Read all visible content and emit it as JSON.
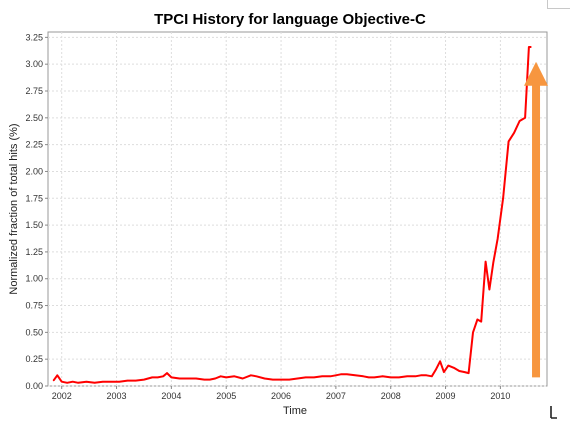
{
  "chart_data": {
    "type": "line",
    "title": "TPCI History for language Objective-C",
    "xlabel": "Time",
    "ylabel": "Normalized fraction of total hits (%)",
    "xlim": [
      2001.75,
      2010.85
    ],
    "ylim": [
      0.0,
      3.3
    ],
    "x_ticks": [
      "2002",
      "2003",
      "2004",
      "2005",
      "2006",
      "2007",
      "2008",
      "2009",
      "2010"
    ],
    "y_ticks": [
      "0.00",
      "0.25",
      "0.50",
      "0.75",
      "1.00",
      "1.25",
      "1.50",
      "1.75",
      "2.00",
      "2.25",
      "2.50",
      "2.75",
      "3.00",
      "3.25"
    ],
    "grid": true,
    "series": [
      {
        "color": "#ff0000",
        "x": [
          2001.85,
          2001.92,
          2002.0,
          2002.1,
          2002.2,
          2002.3,
          2002.45,
          2002.6,
          2002.75,
          2002.9,
          2003.05,
          2003.2,
          2003.35,
          2003.5,
          2003.65,
          2003.75,
          2003.85,
          2003.92,
          2004.0,
          2004.15,
          2004.3,
          2004.45,
          2004.6,
          2004.7,
          2004.8,
          2004.9,
          2005.0,
          2005.15,
          2005.3,
          2005.45,
          2005.55,
          2005.7,
          2005.85,
          2006.0,
          2006.15,
          2006.3,
          2006.45,
          2006.6,
          2006.75,
          2006.9,
          2007.0,
          2007.1,
          2007.2,
          2007.35,
          2007.5,
          2007.6,
          2007.7,
          2007.85,
          2008.0,
          2008.15,
          2008.3,
          2008.45,
          2008.55,
          2008.65,
          2008.75,
          2008.82,
          2008.9,
          2008.97,
          2009.05,
          2009.15,
          2009.25,
          2009.35,
          2009.42,
          2009.5,
          2009.58,
          2009.65,
          2009.73,
          2009.8,
          2009.87,
          2009.95,
          2010.05,
          2010.15,
          2010.25,
          2010.35,
          2010.45,
          2010.52,
          2010.56
        ],
        "values": [
          0.05,
          0.1,
          0.04,
          0.03,
          0.04,
          0.03,
          0.04,
          0.03,
          0.04,
          0.04,
          0.04,
          0.05,
          0.05,
          0.06,
          0.08,
          0.08,
          0.09,
          0.12,
          0.08,
          0.07,
          0.07,
          0.07,
          0.06,
          0.06,
          0.07,
          0.09,
          0.08,
          0.09,
          0.07,
          0.1,
          0.09,
          0.07,
          0.06,
          0.06,
          0.06,
          0.07,
          0.08,
          0.08,
          0.09,
          0.09,
          0.1,
          0.11,
          0.11,
          0.1,
          0.09,
          0.08,
          0.08,
          0.09,
          0.08,
          0.08,
          0.09,
          0.09,
          0.1,
          0.1,
          0.09,
          0.15,
          0.23,
          0.13,
          0.19,
          0.17,
          0.14,
          0.13,
          0.12,
          0.5,
          0.62,
          0.6,
          1.16,
          0.9,
          1.15,
          1.37,
          1.75,
          2.28,
          2.36,
          2.47,
          2.5,
          3.16,
          3.16
        ]
      }
    ],
    "annotation": {
      "type": "arrow",
      "color": "#f7963f",
      "x": 2010.65,
      "y_from": 0.08,
      "y_to": 3.0
    }
  }
}
